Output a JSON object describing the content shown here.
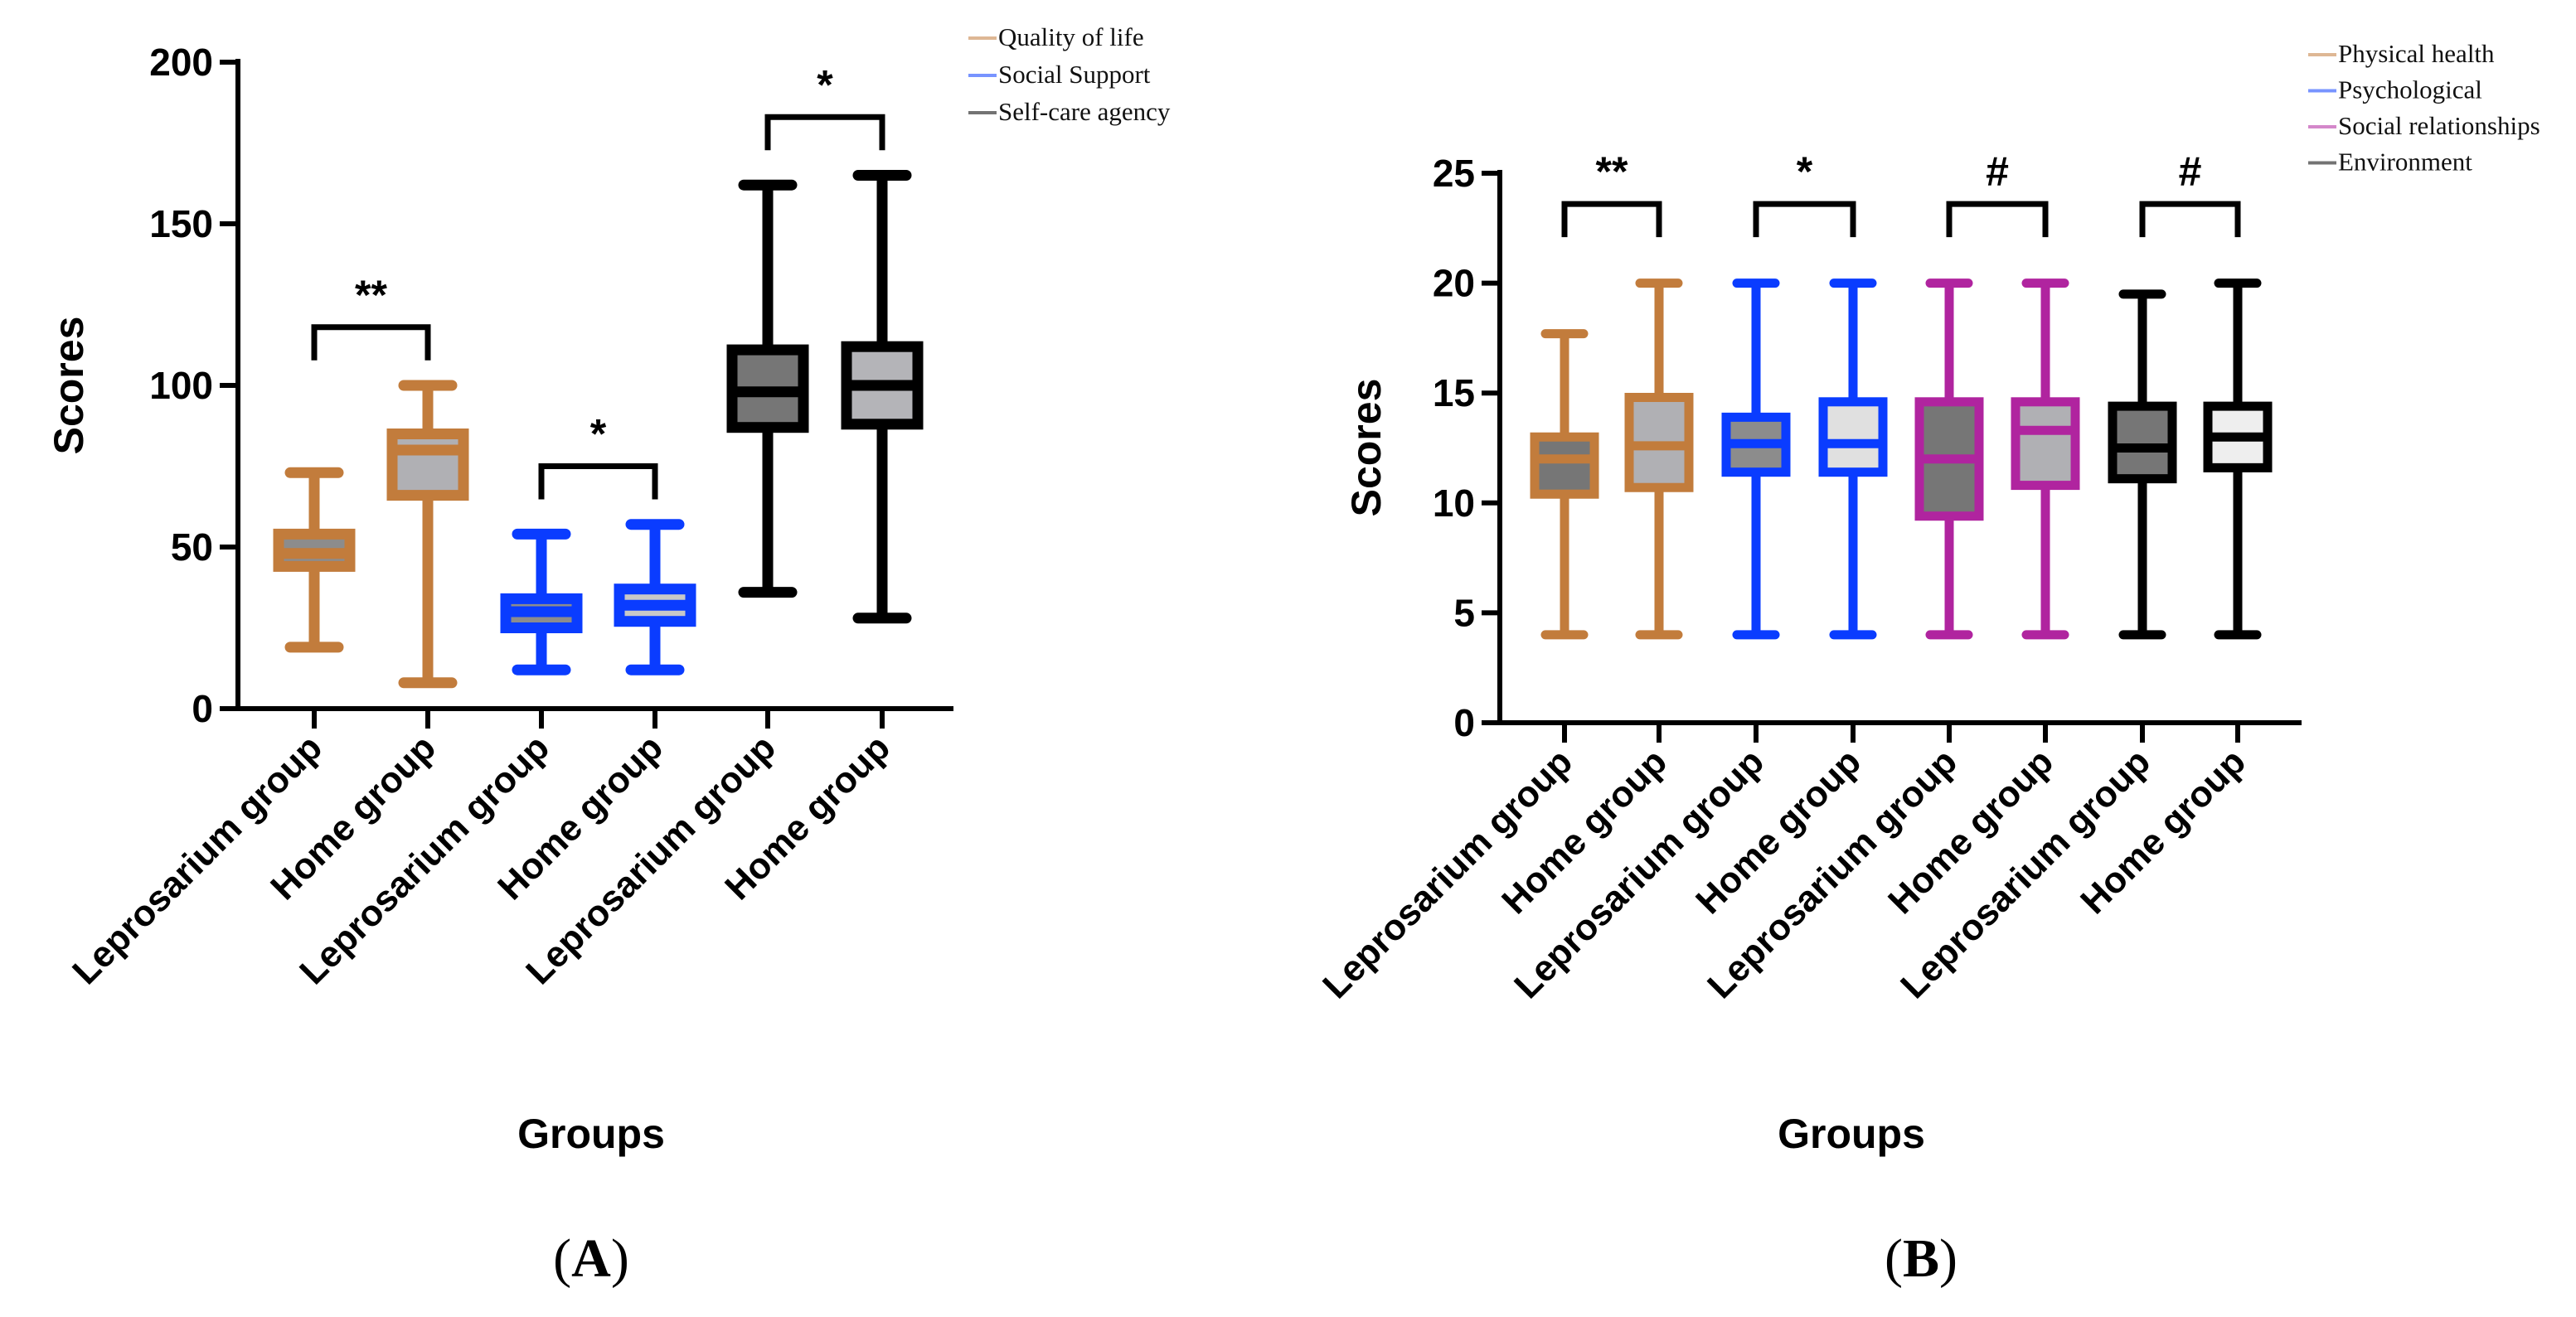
{
  "chart_data": [
    {
      "type": "box",
      "panel_label": "A",
      "xlabel": "Groups",
      "ylabel": "Scores",
      "ylim": [
        0,
        200
      ],
      "yticks": [
        0,
        50,
        100,
        150,
        200
      ],
      "legend": [
        {
          "name": "Quality of life",
          "color": "#c27c3c"
        },
        {
          "name": "Social Support",
          "color": "#0a3cff"
        },
        {
          "name": "Self-care agency",
          "color": "#000000"
        }
      ],
      "legend_placement": "top-right",
      "boxes": [
        {
          "label": "Leprosarium group",
          "series": "Quality of life",
          "min": 19,
          "q1": 44,
          "median": 48,
          "q3": 54,
          "max": 73,
          "fill": "#8c8c8c"
        },
        {
          "label": "Home group",
          "series": "Quality of life",
          "min": 8,
          "q1": 66,
          "median": 80,
          "q3": 85,
          "max": 100,
          "fill": "#b0b0b4"
        },
        {
          "label": "Leprosarium group",
          "series": "Social Support",
          "min": 12,
          "q1": 25,
          "median": 30,
          "q3": 34,
          "max": 54,
          "fill": "#8c8c8c"
        },
        {
          "label": "Home group",
          "series": "Social Support",
          "min": 12,
          "q1": 27,
          "median": 32,
          "q3": 37,
          "max": 57,
          "fill": "#c8c8c8"
        },
        {
          "label": "Leprosarium group",
          "series": "Self-care agency",
          "min": 36,
          "q1": 87,
          "median": 98,
          "q3": 111,
          "max": 162,
          "fill": "#767676"
        },
        {
          "label": "Home group",
          "series": "Self-care agency",
          "min": 28,
          "q1": 88,
          "median": 100,
          "q3": 112,
          "max": 165,
          "fill": "#b4b4b8"
        }
      ],
      "significance": [
        {
          "pair": [
            0,
            1
          ],
          "label": "**"
        },
        {
          "pair": [
            2,
            3
          ],
          "label": "*"
        },
        {
          "pair": [
            4,
            5
          ],
          "label": "*"
        }
      ]
    },
    {
      "type": "box",
      "panel_label": "B",
      "xlabel": "Groups",
      "ylabel": "Scores",
      "ylim": [
        0,
        25
      ],
      "yticks": [
        0,
        5,
        10,
        15,
        20,
        25
      ],
      "legend": [
        {
          "name": "Physical health",
          "color": "#c27c3c"
        },
        {
          "name": "Psychological",
          "color": "#0a3cff"
        },
        {
          "name": "Social relationships",
          "color": "#b0249f"
        },
        {
          "name": "Environment",
          "color": "#000000"
        }
      ],
      "legend_placement": "top-right",
      "boxes": [
        {
          "label": "Leprosarium group",
          "series": "Physical health",
          "min": 4,
          "q1": 10.4,
          "median": 12,
          "q3": 13,
          "max": 17.7,
          "fill": "#767676"
        },
        {
          "label": "Home group",
          "series": "Physical health",
          "min": 4,
          "q1": 10.7,
          "median": 12.6,
          "q3": 14.8,
          "max": 20,
          "fill": "#b0b0b4"
        },
        {
          "label": "Leprosarium group",
          "series": "Psychological",
          "min": 4,
          "q1": 11.4,
          "median": 12.7,
          "q3": 13.9,
          "max": 20,
          "fill": "#8c8c8c"
        },
        {
          "label": "Home group",
          "series": "Psychological",
          "min": 4,
          "q1": 11.4,
          "median": 12.7,
          "q3": 14.6,
          "max": 20,
          "fill": "#e0e0e0"
        },
        {
          "label": "Leprosarium group",
          "series": "Social relationships",
          "min": 4,
          "q1": 9.4,
          "median": 12,
          "q3": 14.6,
          "max": 20,
          "fill": "#767676"
        },
        {
          "label": "Home group",
          "series": "Social relationships",
          "min": 4,
          "q1": 10.8,
          "median": 13.3,
          "q3": 14.6,
          "max": 20,
          "fill": "#b0b0b4"
        },
        {
          "label": "Leprosarium group",
          "series": "Environment",
          "min": 4,
          "q1": 11.1,
          "median": 12.5,
          "q3": 14.4,
          "max": 19.5,
          "fill": "#767676"
        },
        {
          "label": "Home group",
          "series": "Environment",
          "min": 4,
          "q1": 11.6,
          "median": 13,
          "q3": 14.4,
          "max": 20,
          "fill": "#eeeeee"
        }
      ],
      "significance": [
        {
          "pair": [
            0,
            1
          ],
          "label": "**"
        },
        {
          "pair": [
            2,
            3
          ],
          "label": "*"
        },
        {
          "pair": [
            4,
            5
          ],
          "label": "#"
        },
        {
          "pair": [
            6,
            7
          ],
          "label": "#"
        }
      ]
    }
  ]
}
